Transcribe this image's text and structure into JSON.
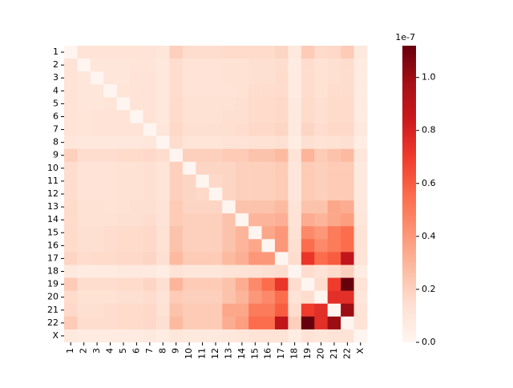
{
  "chart_data": {
    "type": "heatmap",
    "categories": [
      "1",
      "2",
      "3",
      "4",
      "5",
      "6",
      "7",
      "8",
      "9",
      "10",
      "11",
      "12",
      "13",
      "14",
      "15",
      "16",
      "17",
      "18",
      "19",
      "20",
      "21",
      "22",
      "X"
    ],
    "values": [
      [
        0,
        0.12,
        0.12,
        0.12,
        0.12,
        0.12,
        0.12,
        0.1,
        0.2,
        0.15,
        0.15,
        0.15,
        0.16,
        0.16,
        0.16,
        0.16,
        0.18,
        0.08,
        0.22,
        0.16,
        0.17,
        0.22,
        0.08
      ],
      [
        0.12,
        0,
        0.1,
        0.1,
        0.1,
        0.11,
        0.11,
        0.09,
        0.15,
        0.12,
        0.12,
        0.12,
        0.13,
        0.13,
        0.14,
        0.14,
        0.15,
        0.07,
        0.15,
        0.13,
        0.14,
        0.15,
        0.07
      ],
      [
        0.12,
        0.1,
        0,
        0.1,
        0.1,
        0.12,
        0.12,
        0.09,
        0.15,
        0.12,
        0.12,
        0.12,
        0.13,
        0.13,
        0.14,
        0.14,
        0.16,
        0.07,
        0.15,
        0.13,
        0.14,
        0.15,
        0.07
      ],
      [
        0.12,
        0.1,
        0.1,
        0,
        0.11,
        0.12,
        0.12,
        0.09,
        0.15,
        0.12,
        0.12,
        0.12,
        0.12,
        0.13,
        0.15,
        0.15,
        0.16,
        0.07,
        0.15,
        0.13,
        0.15,
        0.15,
        0.07
      ],
      [
        0.12,
        0.1,
        0.1,
        0.11,
        0,
        0.12,
        0.12,
        0.09,
        0.16,
        0.13,
        0.13,
        0.13,
        0.13,
        0.14,
        0.16,
        0.16,
        0.17,
        0.08,
        0.16,
        0.14,
        0.16,
        0.16,
        0.07
      ],
      [
        0.12,
        0.11,
        0.12,
        0.12,
        0.12,
        0,
        0.12,
        0.09,
        0.16,
        0.13,
        0.13,
        0.13,
        0.14,
        0.14,
        0.16,
        0.16,
        0.17,
        0.08,
        0.16,
        0.14,
        0.16,
        0.16,
        0.07
      ],
      [
        0.12,
        0.11,
        0.12,
        0.12,
        0.12,
        0.12,
        0,
        0.1,
        0.17,
        0.14,
        0.14,
        0.14,
        0.14,
        0.15,
        0.17,
        0.17,
        0.18,
        0.08,
        0.18,
        0.15,
        0.17,
        0.17,
        0.08
      ],
      [
        0.1,
        0.09,
        0.09,
        0.09,
        0.09,
        0.09,
        0.1,
        0,
        0.15,
        0.11,
        0.11,
        0.11,
        0.12,
        0.12,
        0.13,
        0.13,
        0.14,
        0.06,
        0.14,
        0.12,
        0.13,
        0.14,
        0.06
      ],
      [
        0.2,
        0.15,
        0.15,
        0.15,
        0.16,
        0.16,
        0.17,
        0.15,
        0,
        0.2,
        0.2,
        0.2,
        0.22,
        0.22,
        0.25,
        0.25,
        0.28,
        0.12,
        0.3,
        0.22,
        0.25,
        0.28,
        0.1
      ],
      [
        0.15,
        0.12,
        0.12,
        0.12,
        0.13,
        0.13,
        0.14,
        0.11,
        0.2,
        0,
        0.18,
        0.18,
        0.18,
        0.2,
        0.2,
        0.2,
        0.22,
        0.1,
        0.22,
        0.2,
        0.22,
        0.22,
        0.08
      ],
      [
        0.15,
        0.12,
        0.12,
        0.12,
        0.13,
        0.13,
        0.14,
        0.11,
        0.2,
        0.18,
        0,
        0.17,
        0.18,
        0.2,
        0.2,
        0.2,
        0.22,
        0.1,
        0.22,
        0.2,
        0.22,
        0.22,
        0.08
      ],
      [
        0.15,
        0.12,
        0.12,
        0.12,
        0.13,
        0.13,
        0.14,
        0.11,
        0.2,
        0.18,
        0.17,
        0,
        0.18,
        0.2,
        0.2,
        0.2,
        0.22,
        0.1,
        0.22,
        0.2,
        0.22,
        0.22,
        0.08
      ],
      [
        0.16,
        0.13,
        0.13,
        0.12,
        0.13,
        0.14,
        0.14,
        0.12,
        0.22,
        0.18,
        0.18,
        0.18,
        0,
        0.25,
        0.25,
        0.25,
        0.28,
        0.12,
        0.25,
        0.25,
        0.35,
        0.33,
        0.09
      ],
      [
        0.16,
        0.13,
        0.13,
        0.13,
        0.14,
        0.14,
        0.15,
        0.12,
        0.22,
        0.2,
        0.2,
        0.2,
        0.25,
        0,
        0.3,
        0.3,
        0.32,
        0.12,
        0.33,
        0.3,
        0.35,
        0.38,
        0.1
      ],
      [
        0.16,
        0.14,
        0.14,
        0.15,
        0.16,
        0.16,
        0.17,
        0.13,
        0.25,
        0.2,
        0.2,
        0.2,
        0.25,
        0.3,
        0,
        0.35,
        0.4,
        0.13,
        0.45,
        0.4,
        0.5,
        0.55,
        0.12
      ],
      [
        0.16,
        0.14,
        0.14,
        0.15,
        0.16,
        0.16,
        0.17,
        0.13,
        0.25,
        0.2,
        0.2,
        0.2,
        0.25,
        0.3,
        0.35,
        0,
        0.4,
        0.14,
        0.55,
        0.45,
        0.5,
        0.55,
        0.12
      ],
      [
        0.18,
        0.15,
        0.16,
        0.16,
        0.17,
        0.17,
        0.18,
        0.14,
        0.28,
        0.22,
        0.22,
        0.22,
        0.28,
        0.32,
        0.4,
        0.4,
        0,
        0.15,
        0.72,
        0.55,
        0.6,
        0.88,
        0.12
      ],
      [
        0.08,
        0.07,
        0.07,
        0.07,
        0.08,
        0.08,
        0.08,
        0.06,
        0.12,
        0.1,
        0.1,
        0.1,
        0.12,
        0.12,
        0.13,
        0.14,
        0.15,
        0,
        0.15,
        0.12,
        0.15,
        0.2,
        0.06
      ],
      [
        0.22,
        0.15,
        0.15,
        0.15,
        0.16,
        0.16,
        0.18,
        0.14,
        0.3,
        0.22,
        0.22,
        0.22,
        0.25,
        0.33,
        0.45,
        0.55,
        0.72,
        0.15,
        0,
        0.15,
        0.7,
        1.12,
        0.12
      ],
      [
        0.16,
        0.13,
        0.13,
        0.13,
        0.14,
        0.14,
        0.15,
        0.12,
        0.22,
        0.2,
        0.2,
        0.2,
        0.25,
        0.3,
        0.4,
        0.45,
        0.55,
        0.12,
        0.15,
        0,
        0.75,
        0.75,
        0.1
      ],
      [
        0.17,
        0.14,
        0.14,
        0.15,
        0.16,
        0.16,
        0.17,
        0.13,
        0.25,
        0.22,
        0.22,
        0.22,
        0.35,
        0.35,
        0.5,
        0.5,
        0.6,
        0.15,
        0.7,
        0.75,
        0,
        1.0,
        0.12
      ],
      [
        0.22,
        0.15,
        0.15,
        0.15,
        0.16,
        0.16,
        0.17,
        0.14,
        0.28,
        0.22,
        0.22,
        0.22,
        0.33,
        0.38,
        0.55,
        0.55,
        0.88,
        0.2,
        1.12,
        0.75,
        1.0,
        0,
        0.12
      ],
      [
        0.08,
        0.07,
        0.07,
        0.07,
        0.07,
        0.07,
        0.08,
        0.06,
        0.1,
        0.08,
        0.08,
        0.08,
        0.09,
        0.1,
        0.12,
        0.12,
        0.12,
        0.06,
        0.12,
        0.1,
        0.12,
        0.12,
        0
      ]
    ],
    "colormap": [
      "#fff5f0",
      "#fee0d2",
      "#fcbba1",
      "#fc9272",
      "#fb6a4a",
      "#ef3b2c",
      "#cb181d",
      "#a50f15",
      "#67000d"
    ],
    "clim": [
      0,
      1.12
    ],
    "cticks": [
      {
        "value": 0,
        "label": "0.0"
      },
      {
        "value": 0.2,
        "label": "0.2"
      },
      {
        "value": 0.4,
        "label": "0.4"
      },
      {
        "value": 0.6,
        "label": "0.6"
      },
      {
        "value": 0.8,
        "label": "0.8"
      },
      {
        "value": 1.0,
        "label": "1.0"
      }
    ],
    "colorbar_offset": "1e-7"
  }
}
